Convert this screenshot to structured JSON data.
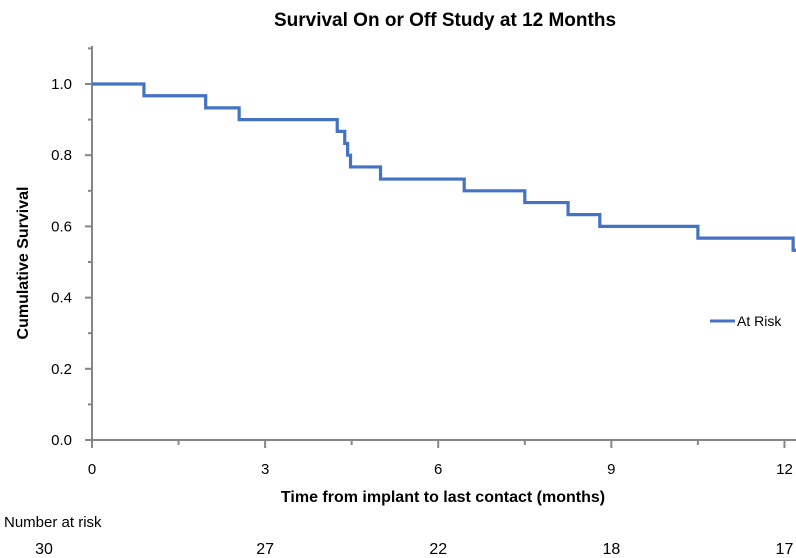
{
  "chart_data": {
    "type": "line",
    "title": "Survival On or Off Study at 12 Months",
    "xlabel": "Time from implant to last contact (months)",
    "ylabel": "Cumulative Survival",
    "xlim": [
      0,
      12.2
    ],
    "ylim": [
      0,
      1.0
    ],
    "x_ticks": [
      "0",
      "3",
      "6",
      "9",
      "12"
    ],
    "y_ticks": [
      "0.0",
      "0.2",
      "0.4",
      "0.6",
      "0.8",
      "1.0"
    ],
    "legend_position": "right",
    "grid": false,
    "line_color": "#4472C4",
    "series": [
      {
        "name": "At Risk",
        "step": true,
        "x": [
          0,
          0.9,
          1.97,
          2.55,
          4.25,
          4.38,
          4.43,
          4.48,
          5.0,
          6.45,
          7.5,
          8.25,
          8.8,
          10.5,
          12.15,
          12.2
        ],
        "y": [
          1.0,
          0.967,
          0.933,
          0.9,
          0.867,
          0.833,
          0.8,
          0.767,
          0.733,
          0.7,
          0.667,
          0.633,
          0.6,
          0.567,
          0.533,
          0.533
        ]
      }
    ],
    "number_at_risk": {
      "label": "Number at risk",
      "times": [
        0,
        3,
        6,
        9,
        12
      ],
      "values": [
        "30",
        "27",
        "22",
        "18",
        "17"
      ]
    }
  }
}
